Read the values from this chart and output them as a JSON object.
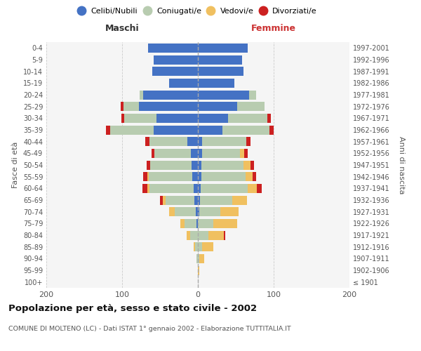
{
  "age_groups": [
    "100+",
    "95-99",
    "90-94",
    "85-89",
    "80-84",
    "75-79",
    "70-74",
    "65-69",
    "60-64",
    "55-59",
    "50-54",
    "45-49",
    "40-44",
    "35-39",
    "30-34",
    "25-29",
    "20-24",
    "15-19",
    "10-14",
    "5-9",
    "0-4"
  ],
  "birth_years": [
    "≤ 1901",
    "1902-1906",
    "1907-1911",
    "1912-1916",
    "1917-1921",
    "1922-1926",
    "1927-1931",
    "1932-1936",
    "1937-1941",
    "1942-1946",
    "1947-1951",
    "1952-1956",
    "1957-1961",
    "1962-1966",
    "1967-1971",
    "1972-1976",
    "1977-1981",
    "1982-1986",
    "1987-1991",
    "1992-1996",
    "1997-2001"
  ],
  "maschi": {
    "celibi": [
      0,
      0,
      0,
      0,
      0,
      2,
      3,
      5,
      6,
      7,
      8,
      9,
      14,
      58,
      55,
      78,
      72,
      38,
      60,
      58,
      66
    ],
    "coniugati": [
      0,
      0,
      2,
      4,
      10,
      16,
      28,
      38,
      58,
      58,
      55,
      48,
      50,
      58,
      42,
      20,
      5,
      0,
      0,
      0,
      0
    ],
    "vedovi": [
      0,
      0,
      0,
      2,
      5,
      5,
      7,
      3,
      3,
      2,
      0,
      0,
      0,
      0,
      0,
      0,
      0,
      0,
      0,
      0,
      0
    ],
    "divorziati": [
      0,
      0,
      0,
      0,
      0,
      0,
      0,
      4,
      6,
      5,
      5,
      4,
      5,
      5,
      4,
      4,
      0,
      0,
      0,
      0,
      0
    ]
  },
  "femmine": {
    "nubili": [
      0,
      0,
      0,
      0,
      0,
      0,
      2,
      3,
      4,
      5,
      5,
      6,
      6,
      32,
      40,
      52,
      68,
      48,
      60,
      58,
      66
    ],
    "coniugate": [
      0,
      0,
      2,
      6,
      14,
      20,
      28,
      42,
      62,
      58,
      55,
      50,
      58,
      62,
      52,
      36,
      9,
      0,
      0,
      0,
      0
    ],
    "vedove": [
      0,
      2,
      6,
      14,
      20,
      32,
      24,
      20,
      12,
      9,
      9,
      5,
      0,
      0,
      0,
      0,
      0,
      0,
      0,
      0,
      0
    ],
    "divorziate": [
      0,
      0,
      0,
      0,
      2,
      0,
      0,
      0,
      6,
      5,
      5,
      5,
      5,
      6,
      4,
      0,
      0,
      0,
      0,
      0,
      0
    ]
  },
  "colors": {
    "celibi_nubili": "#4472C4",
    "coniugati": "#B8CCB0",
    "vedovi": "#F0C060",
    "divorziati": "#CC2020"
  },
  "xlim": 200,
  "title": "Popolazione per età, sesso e stato civile - 2002",
  "subtitle": "COMUNE DI MOLTENO (LC) - Dati ISTAT 1° gennaio 2002 - Elaborazione TUTTITALIA.IT",
  "ylabel_left": "Fasce di età",
  "ylabel_right": "Anni di nascita",
  "xlabel_left": "Maschi",
  "xlabel_right": "Femmine",
  "legend_labels": [
    "Celibi/Nubili",
    "Coniugati/e",
    "Vedovi/e",
    "Divorziati/e"
  ],
  "bg_color": "#FFFFFF",
  "plot_bg": "#F5F5F5"
}
